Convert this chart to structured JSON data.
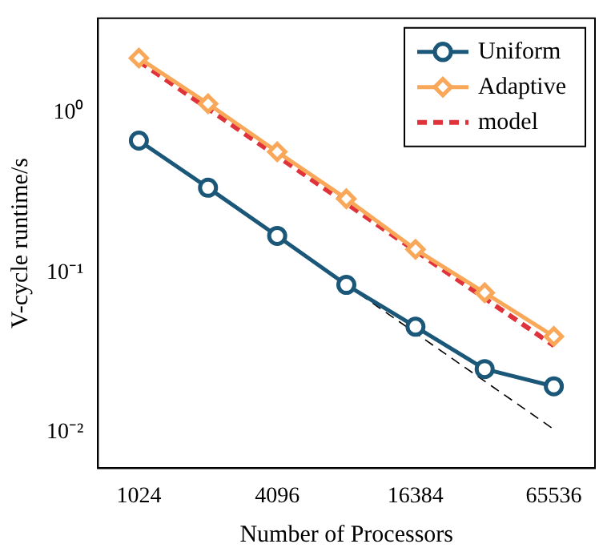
{
  "chart_data": {
    "type": "line",
    "xlabel": "Number of Processors",
    "ylabel": "V-cycle runtime/s",
    "log": "xy",
    "grid": false,
    "legend": "top right",
    "xlim": [
      680,
      99000
    ],
    "xticks": [
      1024,
      4096,
      16384,
      65536
    ],
    "ylim": [
      0.006,
      3.9
    ],
    "yticks": [
      {
        "value": 0.01,
        "label": "10⁻²"
      },
      {
        "value": 0.1,
        "label": "10⁻¹"
      },
      {
        "value": 1,
        "label": "10⁰"
      }
    ],
    "series": [
      {
        "name": "Uniform",
        "color": "#1b5779",
        "marker": "circle",
        "line_style": "solid",
        "x": [
          1024,
          2048,
          4096,
          8192,
          16384,
          32768,
          65536
        ],
        "values": [
          0.67,
          0.34,
          0.17,
          0.084,
          0.046,
          0.025,
          0.0195
        ]
      },
      {
        "name": "Adaptive",
        "color": "#f9a85a",
        "marker": "diamond",
        "line_style": "solid",
        "x": [
          1024,
          2048,
          4096,
          8192,
          16384,
          32768,
          65536
        ],
        "values": [
          2.2,
          1.14,
          0.57,
          0.29,
          0.14,
          0.075,
          0.04
        ]
      },
      {
        "name": "model",
        "color": "#e0323a",
        "marker": "none",
        "line_style": "dashed",
        "x": [
          1024,
          65536
        ],
        "values": [
          2.1,
          0.035
        ]
      },
      {
        "color": "#000000",
        "marker": "none",
        "line_style": "dashed",
        "x": [
          8192,
          65536
        ],
        "values": [
          0.084,
          0.0105
        ]
      }
    ]
  }
}
